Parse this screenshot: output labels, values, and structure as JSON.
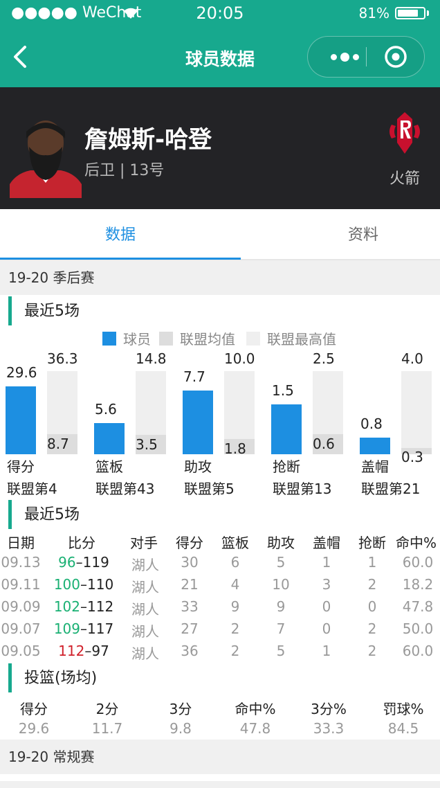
{
  "status_bar": {
    "carrier": "●●●●● WeChat",
    "time": "20:05",
    "battery": "81%",
    "battery_level": 0.81
  },
  "nav": {
    "title": "球员数据"
  },
  "player": {
    "name": "詹姆斯-哈登",
    "position": "后卫 | 13号",
    "team": "火箭"
  },
  "tabs": [
    {
      "label": "数据",
      "active": true
    },
    {
      "label": "资料",
      "active": false
    }
  ],
  "season_playoffs": "19-20 季后赛",
  "recent_title": "最近5场",
  "chart_data": {
    "type": "bar",
    "categories": [
      "得分",
      "篮板",
      "助攻",
      "抢断",
      "盖帽"
    ],
    "ranks": [
      "联盟第4",
      "联盟第43",
      "联盟第5",
      "联盟第13",
      "联盟第21"
    ],
    "legend": [
      "球员",
      "联盟均值",
      "联盟最高值"
    ],
    "series": [
      {
        "name": "球员",
        "values": [
          29.6,
          5.6,
          7.7,
          1.5,
          0.8
        ],
        "color": "#1d8fe1"
      },
      {
        "name": "联盟均值",
        "values": [
          8.7,
          3.5,
          1.8,
          0.6,
          0.3
        ],
        "color": "#dddddd"
      },
      {
        "name": "联盟最高值",
        "values": [
          36.3,
          14.8,
          10.0,
          2.5,
          4.0
        ],
        "color": "#efefef"
      }
    ],
    "value_labels": {
      "player": [
        "29.6",
        "5.6",
        "7.7",
        "1.5",
        "0.8"
      ],
      "avg": [
        "8.7",
        "3.5",
        "1.8",
        "0.6",
        "0.3"
      ],
      "max": [
        "36.3",
        "14.8",
        "10.0",
        "2.5",
        "4.0"
      ]
    }
  },
  "games_title": "最近5场",
  "games": {
    "headers": [
      "日期",
      "比分",
      "对手",
      "得分",
      "篮板",
      "助攻",
      "盖帽",
      "抢断",
      "命中%"
    ],
    "rows": [
      {
        "date": "09.13",
        "own": "96",
        "sep": "–",
        "opp": "119",
        "result": "loss_own",
        "team": "湖人",
        "pts": "30",
        "reb": "6",
        "ast": "5",
        "blk": "1",
        "stl": "1",
        "fg": "60.0"
      },
      {
        "date": "09.11",
        "own": "100",
        "sep": "–",
        "opp": "110",
        "result": "loss_own",
        "team": "湖人",
        "pts": "21",
        "reb": "4",
        "ast": "10",
        "blk": "3",
        "stl": "2",
        "fg": "18.2"
      },
      {
        "date": "09.09",
        "own": "102",
        "sep": "–",
        "opp": "112",
        "result": "loss_own",
        "team": "湖人",
        "pts": "33",
        "reb": "9",
        "ast": "9",
        "blk": "0",
        "stl": "0",
        "fg": "47.8"
      },
      {
        "date": "09.07",
        "own": "109",
        "sep": "–",
        "opp": "117",
        "result": "loss_own",
        "team": "湖人",
        "pts": "27",
        "reb": "2",
        "ast": "7",
        "blk": "0",
        "stl": "2",
        "fg": "50.0"
      },
      {
        "date": "09.05",
        "own": "112",
        "sep": "–",
        "opp": "97",
        "result": "win_own",
        "team": "湖人",
        "pts": "36",
        "reb": "2",
        "ast": "5",
        "blk": "1",
        "stl": "2",
        "fg": "60.0"
      }
    ]
  },
  "shooting_title": "投篮(场均)",
  "shooting": {
    "headers": [
      "得分",
      "2分",
      "3分",
      "命中%",
      "3分%",
      "罚球%"
    ],
    "values": [
      "29.6",
      "11.7",
      "9.8",
      "47.8",
      "33.3",
      "84.5"
    ]
  },
  "season_regular": "19-20 常规赛",
  "colors": {
    "accent": "#17a98e",
    "blue": "#1d8fe1",
    "header_bg": "#232326",
    "win": "#19b073",
    "loss": "#d0202a"
  }
}
